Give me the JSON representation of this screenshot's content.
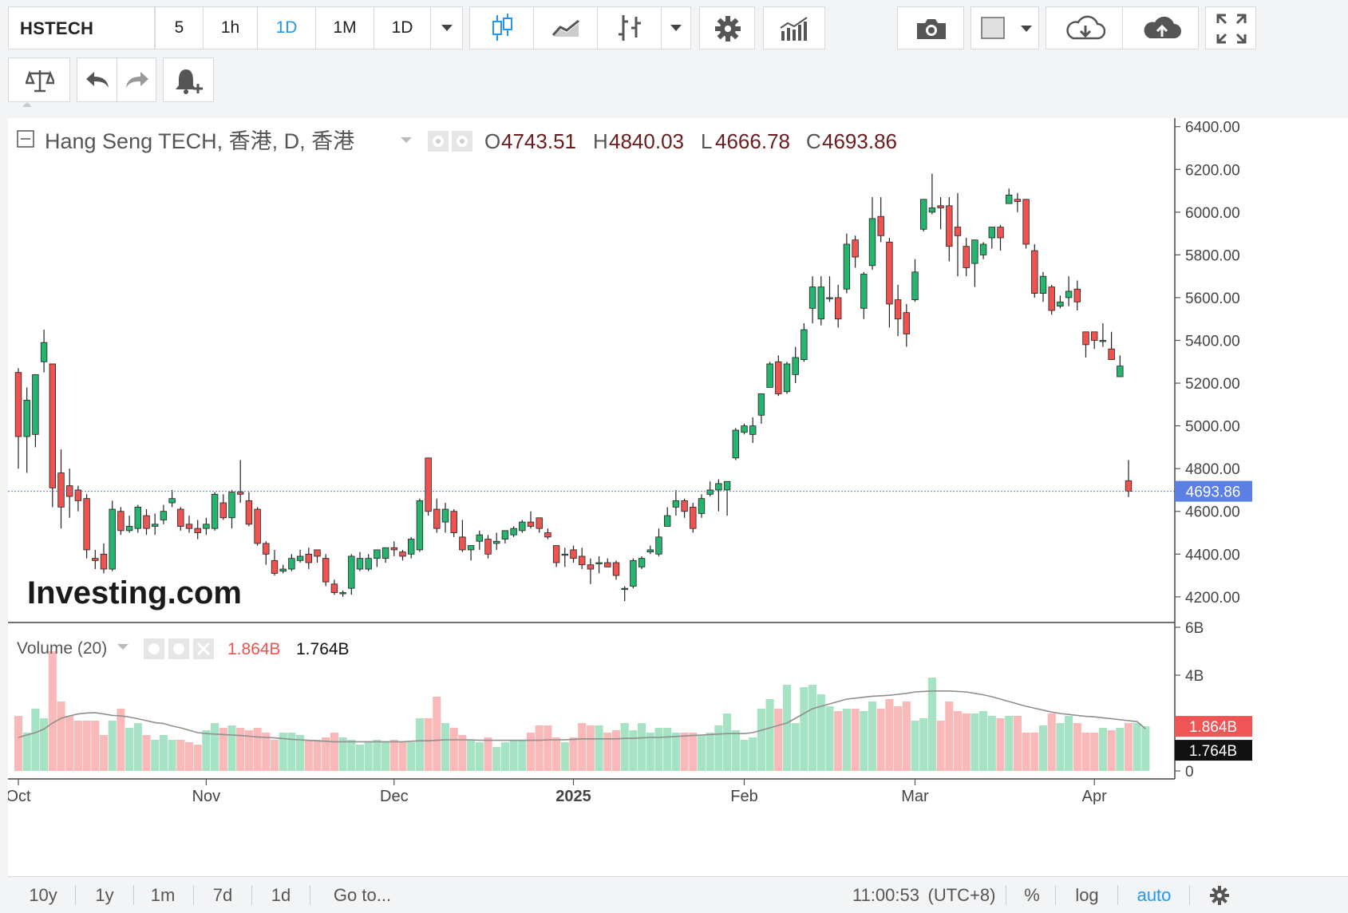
{
  "toolbar": {
    "symbol": "HSTECH",
    "intervals": [
      "5",
      "1h",
      "1D",
      "1M",
      "1D"
    ],
    "active_interval_index": 2
  },
  "icons": [
    "candles-icon",
    "area-chart-icon",
    "bars-icon",
    "chevron-down-icon",
    "gear-icon",
    "indicators-icon",
    "camera-icon",
    "color-swatch-icon",
    "cloud-download-icon",
    "cloud-upload-icon",
    "fullscreen-icon",
    "compare-icon",
    "undo-icon",
    "redo-icon",
    "add-alert-icon"
  ],
  "legend": {
    "title": "Hang Seng TECH, 香港, D, 香港",
    "o_label": "O",
    "o_value": "4743.51",
    "h_label": "H",
    "h_value": "4840.03",
    "l_label": "L",
    "l_value": "4666.78",
    "c_label": "C",
    "c_value": "4693.86"
  },
  "volume_legend": {
    "title": "Volume (20)",
    "value_red": "1.864B",
    "value_black": "1.764B"
  },
  "watermark": "Investing.com",
  "colors": {
    "up": "#26b56f",
    "down": "#ef5350",
    "up_vol": "#a5e3c4",
    "down_vol": "#f8b9b8",
    "price_tag": "#5b7fe4",
    "ma": "#8f8f8f",
    "accent": "#2196f3"
  },
  "chart_data": [
    {
      "type": "candlestick",
      "title": "Hang Seng TECH, 香港, D, 香港",
      "y_ticks": [
        "6400.00",
        "6200.00",
        "6000.00",
        "5800.00",
        "5600.00",
        "5400.00",
        "5200.00",
        "5000.00",
        "4800.00",
        "4600.00",
        "4400.00",
        "4200.00"
      ],
      "ylim": [
        4080,
        6440
      ],
      "last_price": 4693.86,
      "last_price_label": "4693.86",
      "x_labels": [
        {
          "label": "Oct",
          "index": 0,
          "bold": false
        },
        {
          "label": "Nov",
          "index": 22,
          "bold": false
        },
        {
          "label": "Dec",
          "index": 44,
          "bold": false
        },
        {
          "label": "2025",
          "index": 65,
          "bold": true
        },
        {
          "label": "Feb",
          "index": 85,
          "bold": false
        },
        {
          "label": "Mar",
          "index": 105,
          "bold": false
        },
        {
          "label": "Apr",
          "index": 126,
          "bold": false
        }
      ],
      "candles": [
        [
          5250,
          4950,
          5270,
          4800
        ],
        [
          4950,
          5120,
          5180,
          4780
        ],
        [
          4960,
          5240,
          5240,
          4900
        ],
        [
          5300,
          5390,
          5450,
          5250
        ],
        [
          5290,
          4710,
          5290,
          4620
        ],
        [
          4780,
          4620,
          4890,
          4520
        ],
        [
          4720,
          4670,
          4800,
          4570
        ],
        [
          4700,
          4650,
          4720,
          4600
        ],
        [
          4660,
          4420,
          4680,
          4380
        ],
        [
          4380,
          4370,
          4420,
          4330
        ],
        [
          4400,
          4330,
          4450,
          4310
        ],
        [
          4330,
          4610,
          4650,
          4320
        ],
        [
          4600,
          4510,
          4620,
          4490
        ],
        [
          4510,
          4530,
          4580,
          4500
        ],
        [
          4520,
          4620,
          4630,
          4500
        ],
        [
          4580,
          4520,
          4610,
          4490
        ],
        [
          4530,
          4540,
          4590,
          4490
        ],
        [
          4560,
          4600,
          4630,
          4540
        ],
        [
          4640,
          4660,
          4700,
          4620
        ],
        [
          4610,
          4530,
          4620,
          4510
        ],
        [
          4540,
          4520,
          4580,
          4500
        ],
        [
          4520,
          4500,
          4560,
          4470
        ],
        [
          4520,
          4540,
          4570,
          4490
        ],
        [
          4520,
          4680,
          4690,
          4510
        ],
        [
          4640,
          4570,
          4680,
          4560
        ],
        [
          4570,
          4690,
          4700,
          4520
        ],
        [
          4690,
          4680,
          4840,
          4640
        ],
        [
          4650,
          4540,
          4690,
          4530
        ],
        [
          4610,
          4450,
          4620,
          4440
        ],
        [
          4450,
          4400,
          4460,
          4350
        ],
        [
          4370,
          4310,
          4420,
          4300
        ],
        [
          4320,
          4330,
          4350,
          4310
        ],
        [
          4330,
          4380,
          4400,
          4320
        ],
        [
          4370,
          4390,
          4420,
          4360
        ],
        [
          4400,
          4360,
          4430,
          4330
        ],
        [
          4420,
          4390,
          4420,
          4360
        ],
        [
          4380,
          4270,
          4400,
          4250
        ],
        [
          4260,
          4220,
          4280,
          4210
        ],
        [
          4220,
          4220,
          4230,
          4200
        ],
        [
          4240,
          4390,
          4400,
          4210
        ],
        [
          4330,
          4380,
          4410,
          4320
        ],
        [
          4330,
          4380,
          4400,
          4320
        ],
        [
          4380,
          4420,
          4420,
          4340
        ],
        [
          4380,
          4430,
          4430,
          4360
        ],
        [
          4430,
          4420,
          4460,
          4390
        ],
        [
          4410,
          4390,
          4420,
          4370
        ],
        [
          4400,
          4470,
          4480,
          4380
        ],
        [
          4420,
          4650,
          4660,
          4410
        ],
        [
          4850,
          4600,
          4850,
          4580
        ],
        [
          4610,
          4520,
          4660,
          4500
        ],
        [
          4550,
          4610,
          4640,
          4500
        ],
        [
          4600,
          4500,
          4610,
          4480
        ],
        [
          4480,
          4420,
          4560,
          4410
        ],
        [
          4420,
          4440,
          4440,
          4370
        ],
        [
          4460,
          4490,
          4510,
          4420
        ],
        [
          4470,
          4400,
          4490,
          4380
        ],
        [
          4450,
          4460,
          4500,
          4420
        ],
        [
          4470,
          4510,
          4510,
          4450
        ],
        [
          4490,
          4520,
          4530,
          4480
        ],
        [
          4510,
          4550,
          4560,
          4500
        ],
        [
          4550,
          4530,
          4600,
          4520
        ],
        [
          4570,
          4520,
          4560,
          4500
        ],
        [
          4500,
          4480,
          4520,
          4470
        ],
        [
          4440,
          4360,
          4440,
          4340
        ],
        [
          4400,
          4400,
          4430,
          4340
        ],
        [
          4420,
          4380,
          4440,
          4360
        ],
        [
          4390,
          4350,
          4430,
          4330
        ],
        [
          4350,
          4330,
          4380,
          4260
        ],
        [
          4360,
          4360,
          4390,
          4310
        ],
        [
          4360,
          4340,
          4380,
          4340
        ],
        [
          4360,
          4300,
          4370,
          4280
        ],
        [
          4240,
          4240,
          4250,
          4180
        ],
        [
          4250,
          4370,
          4380,
          4240
        ],
        [
          4340,
          4380,
          4390,
          4330
        ],
        [
          4410,
          4420,
          4440,
          4400
        ],
        [
          4400,
          4480,
          4520,
          4390
        ],
        [
          4530,
          4580,
          4620,
          4530
        ],
        [
          4620,
          4650,
          4700,
          4580
        ],
        [
          4650,
          4600,
          4660,
          4570
        ],
        [
          4620,
          4520,
          4640,
          4500
        ],
        [
          4590,
          4660,
          4680,
          4570
        ],
        [
          4680,
          4700,
          4740,
          4670
        ],
        [
          4700,
          4730,
          4750,
          4600
        ],
        [
          4700,
          4740,
          4740,
          4580
        ],
        [
          4850,
          4980,
          4990,
          4840
        ],
        [
          4970,
          5000,
          5010,
          4960
        ],
        [
          4960,
          5000,
          5040,
          4920
        ],
        [
          5050,
          5150,
          5150,
          5010
        ],
        [
          5180,
          5290,
          5300,
          5180
        ],
        [
          5300,
          5150,
          5330,
          5140
        ],
        [
          5160,
          5290,
          5300,
          5150
        ],
        [
          5240,
          5320,
          5370,
          5200
        ],
        [
          5310,
          5450,
          5480,
          5300
        ],
        [
          5550,
          5650,
          5700,
          5480
        ],
        [
          5500,
          5650,
          5700,
          5470
        ],
        [
          5600,
          5600,
          5700,
          5580
        ],
        [
          5600,
          5500,
          5660,
          5460
        ],
        [
          5640,
          5850,
          5900,
          5620
        ],
        [
          5870,
          5790,
          5890,
          5740
        ],
        [
          5550,
          5710,
          5720,
          5500
        ],
        [
          5750,
          5970,
          6070,
          5730
        ],
        [
          5980,
          5890,
          6070,
          5860
        ],
        [
          5860,
          5570,
          5880,
          5460
        ],
        [
          5590,
          5500,
          5660,
          5420
        ],
        [
          5530,
          5430,
          5570,
          5370
        ],
        [
          5590,
          5720,
          5780,
          5580
        ],
        [
          5920,
          6060,
          6060,
          5910
        ],
        [
          6000,
          6020,
          6180,
          5990
        ],
        [
          6030,
          6020,
          6070,
          5920
        ],
        [
          6030,
          5840,
          6070,
          5770
        ],
        [
          5930,
          5890,
          6090,
          5700
        ],
        [
          5840,
          5740,
          5880,
          5700
        ],
        [
          5760,
          5870,
          5870,
          5650
        ],
        [
          5800,
          5850,
          5860,
          5780
        ],
        [
          5880,
          5930,
          5930,
          5830
        ],
        [
          5930,
          5880,
          5940,
          5820
        ],
        [
          6040,
          6080,
          6110,
          6050
        ],
        [
          6060,
          6050,
          6090,
          6000
        ],
        [
          6060,
          5850,
          6060,
          5830
        ],
        [
          5820,
          5620,
          5850,
          5600
        ],
        [
          5620,
          5700,
          5720,
          5580
        ],
        [
          5650,
          5540,
          5660,
          5520
        ],
        [
          5560,
          5580,
          5610,
          5550
        ],
        [
          5600,
          5630,
          5700,
          5560
        ],
        [
          5640,
          5580,
          5680,
          5540
        ],
        [
          5440,
          5380,
          5440,
          5320
        ],
        [
          5440,
          5400,
          5420,
          5360
        ],
        [
          5400,
          5400,
          5480,
          5370
        ],
        [
          5360,
          5310,
          5440,
          5320
        ],
        [
          5230,
          5280,
          5330,
          5230
        ],
        [
          4743.51,
          4693.86,
          4840.03,
          4666.78
        ]
      ]
    },
    {
      "type": "bar",
      "title": "Volume (20)",
      "y_ticks": [
        "6B",
        "4B",
        "0"
      ],
      "ylim": [
        0,
        6.2
      ],
      "unit": "B",
      "last_volume_label": "1.864B",
      "last_ma_label": "1.764B",
      "volumes": [
        2.3,
        1.6,
        2.6,
        2.2,
        5.0,
        2.9,
        2.3,
        2.1,
        2.1,
        2.1,
        1.5,
        2.1,
        2.6,
        1.8,
        2.0,
        1.5,
        1.3,
        1.5,
        1.3,
        1.3,
        1.2,
        1.1,
        1.7,
        2.0,
        1.8,
        1.9,
        1.8,
        1.7,
        1.8,
        1.6,
        1.3,
        1.6,
        1.6,
        1.5,
        1.3,
        1.3,
        1.4,
        1.6,
        1.4,
        1.3,
        1.1,
        1.2,
        1.3,
        1.2,
        1.3,
        1.2,
        1.2,
        2.2,
        2.2,
        3.1,
        2.0,
        1.8,
        1.5,
        1.3,
        1.2,
        1.4,
        1.0,
        1.2,
        1.3,
        1.3,
        1.6,
        1.9,
        1.9,
        1.4,
        1.2,
        1.4,
        2.0,
        1.9,
        1.9,
        1.6,
        1.7,
        2.0,
        1.7,
        2.0,
        1.6,
        1.8,
        1.8,
        1.6,
        1.6,
        1.6,
        1.5,
        1.6,
        1.9,
        2.4,
        1.7,
        1.3,
        1.4,
        2.6,
        3.0,
        2.6,
        3.6,
        2.0,
        3.5,
        3.6,
        3.2,
        2.7,
        2.5,
        2.6,
        2.6,
        2.5,
        2.9,
        2.6,
        3.0,
        2.7,
        2.9,
        2.1,
        2.2,
        3.9,
        2.1,
        2.9,
        2.5,
        2.4,
        2.4,
        2.5,
        2.3,
        2.2,
        2.3,
        2.3,
        1.6,
        1.6,
        1.9,
        2.4,
        2.0,
        2.3,
        2.0,
        1.6,
        1.6,
        1.8,
        1.7,
        1.8,
        2.0,
        2.0,
        1.864
      ],
      "ma20": [
        1.4,
        1.5,
        1.6,
        1.75,
        2.0,
        2.2,
        2.3,
        2.38,
        2.42,
        2.43,
        2.38,
        2.32,
        2.3,
        2.25,
        2.18,
        2.1,
        2.02,
        1.98,
        1.88,
        1.8,
        1.7,
        1.6,
        1.56,
        1.54,
        1.52,
        1.5,
        1.48,
        1.45,
        1.42,
        1.4,
        1.38,
        1.35,
        1.32,
        1.3,
        1.28,
        1.26,
        1.24,
        1.22,
        1.22,
        1.22,
        1.22,
        1.22,
        1.22,
        1.22,
        1.22,
        1.22,
        1.24,
        1.26,
        1.26,
        1.28,
        1.3,
        1.3,
        1.3,
        1.3,
        1.28,
        1.28,
        1.28,
        1.28,
        1.28,
        1.28,
        1.28,
        1.28,
        1.3,
        1.3,
        1.3,
        1.32,
        1.34,
        1.34,
        1.34,
        1.34,
        1.34,
        1.36,
        1.36,
        1.38,
        1.4,
        1.4,
        1.42,
        1.44,
        1.46,
        1.48,
        1.5,
        1.52,
        1.54,
        1.56,
        1.56,
        1.56,
        1.6,
        1.7,
        1.8,
        1.9,
        2.0,
        2.2,
        2.4,
        2.6,
        2.7,
        2.8,
        2.9,
        3.0,
        3.04,
        3.08,
        3.12,
        3.14,
        3.16,
        3.2,
        3.24,
        3.3,
        3.32,
        3.34,
        3.34,
        3.34,
        3.32,
        3.3,
        3.24,
        3.18,
        3.1,
        3.0,
        2.9,
        2.8,
        2.7,
        2.62,
        2.54,
        2.46,
        2.4,
        2.36,
        2.32,
        2.28,
        2.26,
        2.22,
        2.18,
        2.14,
        2.1,
        2.06,
        1.764
      ]
    }
  ],
  "bottom_bar": {
    "ranges": [
      "10y",
      "1y",
      "1m",
      "7d",
      "1d"
    ],
    "goto": "Go to...",
    "time": "11:00:53",
    "timezone": "(UTC+8)",
    "percent": "%",
    "log": "log",
    "auto": "auto"
  }
}
